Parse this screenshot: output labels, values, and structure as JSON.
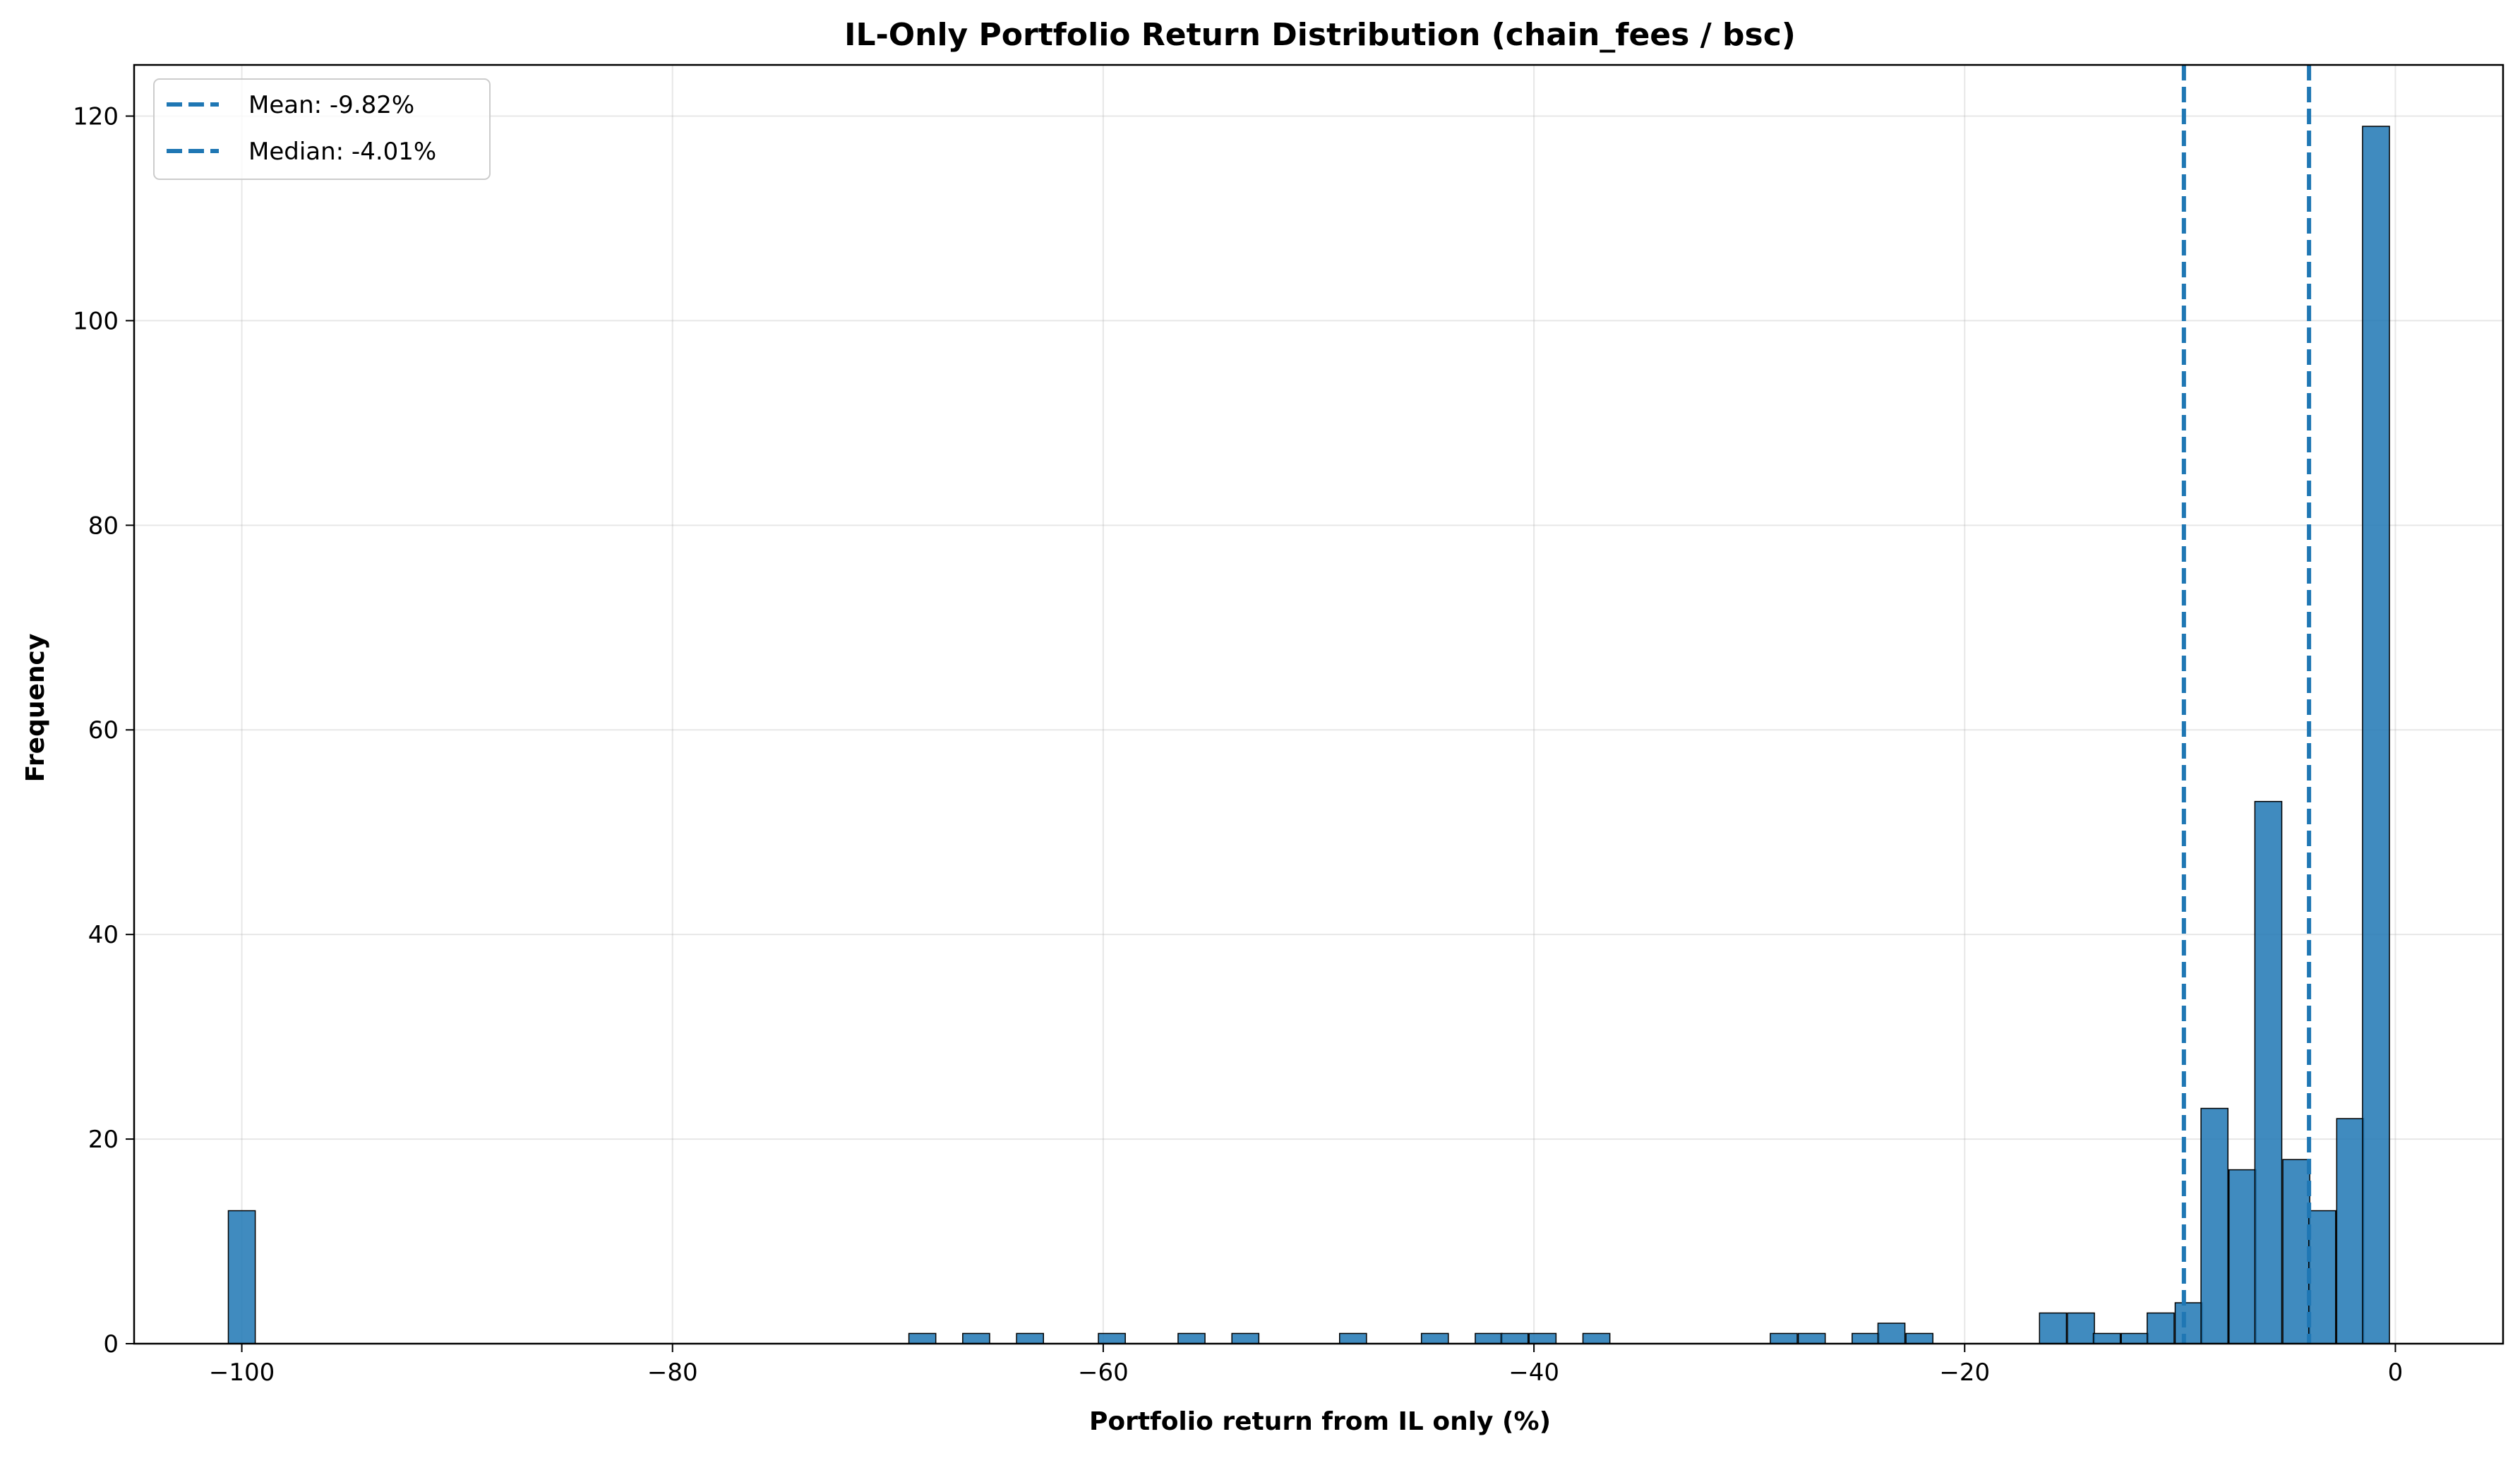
{
  "chart_data": {
    "type": "bar",
    "title": "IL-Only Portfolio Return Distribution (chain_fees / bsc)",
    "xlabel": "Portfolio return from IL only (%)",
    "ylabel": "Frequency",
    "xlim": [
      -105,
      5
    ],
    "ylim": [
      0,
      125
    ],
    "xticks": [
      -100,
      -80,
      -60,
      -40,
      -20,
      0
    ],
    "xtick_labels": [
      "−100",
      "−80",
      "−60",
      "−40",
      "−20",
      "0"
    ],
    "yticks": [
      0,
      20,
      40,
      60,
      80,
      100,
      120
    ],
    "ytick_labels": [
      "0",
      "20",
      "40",
      "60",
      "80",
      "100",
      "120"
    ],
    "grid": true,
    "legend_position": "top-left",
    "bin_width": 1.25,
    "bins": [
      {
        "x": -100.0,
        "count": 13
      },
      {
        "x": -68.4,
        "count": 1
      },
      {
        "x": -65.9,
        "count": 1
      },
      {
        "x": -63.4,
        "count": 1
      },
      {
        "x": -59.6,
        "count": 1
      },
      {
        "x": -55.9,
        "count": 1
      },
      {
        "x": -53.4,
        "count": 1
      },
      {
        "x": -48.4,
        "count": 1
      },
      {
        "x": -44.6,
        "count": 1
      },
      {
        "x": -42.1,
        "count": 1
      },
      {
        "x": -40.9,
        "count": 1
      },
      {
        "x": -39.6,
        "count": 1
      },
      {
        "x": -37.1,
        "count": 1
      },
      {
        "x": -28.4,
        "count": 1
      },
      {
        "x": -27.1,
        "count": 1
      },
      {
        "x": -24.6,
        "count": 1
      },
      {
        "x": -23.4,
        "count": 2
      },
      {
        "x": -22.1,
        "count": 1
      },
      {
        "x": -15.9,
        "count": 3
      },
      {
        "x": -14.6,
        "count": 3
      },
      {
        "x": -13.4,
        "count": 1
      },
      {
        "x": -12.1,
        "count": 1
      },
      {
        "x": -10.9,
        "count": 3
      },
      {
        "x": -9.6,
        "count": 4
      },
      {
        "x": -8.4,
        "count": 23
      },
      {
        "x": -7.1,
        "count": 17
      },
      {
        "x": -5.9,
        "count": 53
      },
      {
        "x": -4.6,
        "count": 18
      },
      {
        "x": -3.4,
        "count": 13
      },
      {
        "x": -2.1,
        "count": 22
      },
      {
        "x": -0.9,
        "count": 119
      }
    ],
    "reference_lines": [
      {
        "name": "Mean: -9.82%",
        "x": -9.82,
        "color": "#1f77b4"
      },
      {
        "name": "Median: -4.01%",
        "x": -4.01,
        "color": "#1f77b4"
      }
    ]
  }
}
